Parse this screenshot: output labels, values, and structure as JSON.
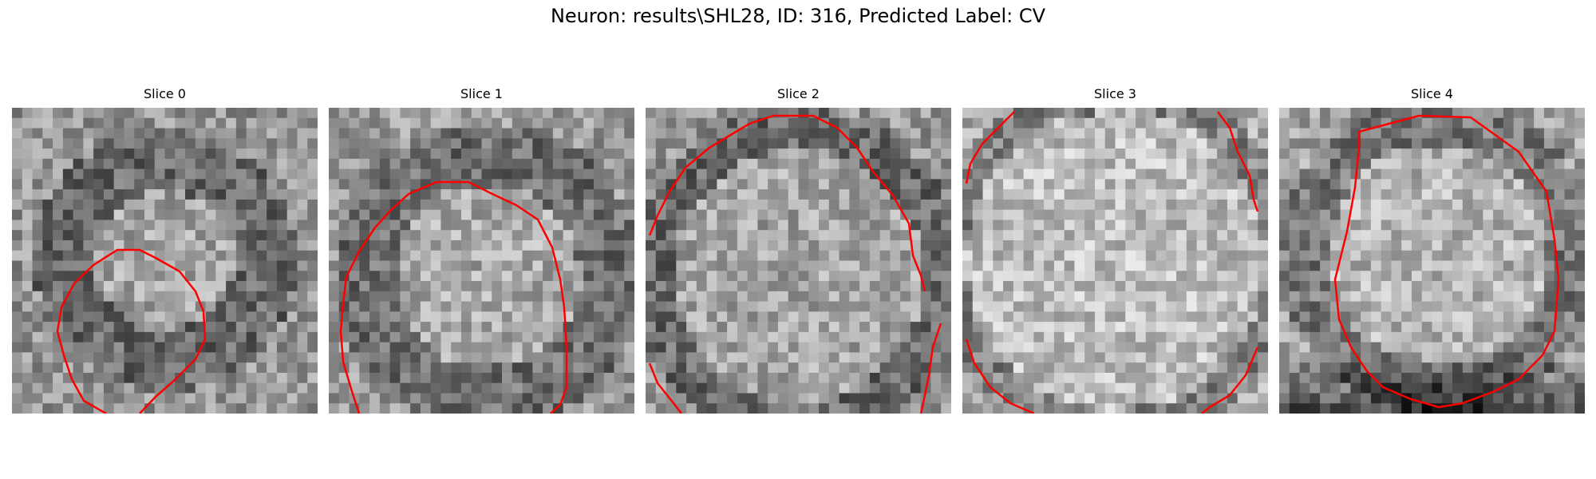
{
  "figure": {
    "title": "Neuron: results\\SHL28, ID: 316, Predicted Label: CV"
  },
  "panels": [
    {
      "title": "Slice 0"
    },
    {
      "title": "Slice 1"
    },
    {
      "title": "Slice 2"
    },
    {
      "title": "Slice 3"
    },
    {
      "title": "Slice 4"
    }
  ],
  "contour_color": "#ff0000"
}
